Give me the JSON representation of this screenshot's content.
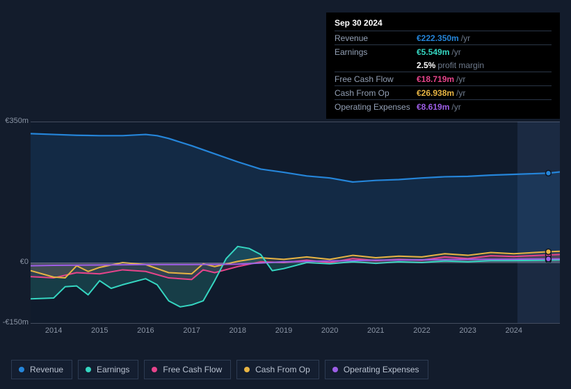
{
  "tooltip": {
    "date": "Sep 30 2024",
    "rows": [
      {
        "label": "Revenue",
        "value": "€222.350m",
        "unit": "/yr",
        "color": "#2585d9"
      },
      {
        "label": "Earnings",
        "value": "€5.549m",
        "unit": "/yr",
        "color": "#35d6c1"
      },
      {
        "label": "",
        "value": "2.5%",
        "unit": "profit margin",
        "color": "#ffffff",
        "noborder": true
      },
      {
        "label": "Free Cash Flow",
        "value": "€18.719m",
        "unit": "/yr",
        "color": "#e6448b"
      },
      {
        "label": "Cash From Op",
        "value": "€26.938m",
        "unit": "/yr",
        "color": "#e7b443"
      },
      {
        "label": "Operating Expenses",
        "value": "€8.619m",
        "unit": "/yr",
        "color": "#9d5ee6"
      }
    ]
  },
  "chart": {
    "type": "line-area",
    "ylim": [
      -150,
      350
    ],
    "yticks": [
      {
        "v": 350,
        "label": "€350m"
      },
      {
        "v": 0,
        "label": "€0"
      },
      {
        "v": -150,
        "label": "-€150m"
      }
    ],
    "xlim": [
      2013.5,
      2025.0
    ],
    "xticks": [
      2014,
      2015,
      2016,
      2017,
      2018,
      2019,
      2020,
      2021,
      2022,
      2023,
      2024
    ],
    "background_color": "#101b2c",
    "future_band_color": "#1b2a42",
    "grid_color": "rgba(160,170,190,0.35)",
    "series": {
      "revenue": {
        "label": "Revenue",
        "color": "#2585d9",
        "fill_opacity": 0.15,
        "width": 2.2,
        "data": [
          [
            2013.5,
            320
          ],
          [
            2014,
            318
          ],
          [
            2014.5,
            316
          ],
          [
            2015,
            315
          ],
          [
            2015.5,
            315
          ],
          [
            2016,
            318
          ],
          [
            2016.25,
            315
          ],
          [
            2016.5,
            308
          ],
          [
            2017,
            290
          ],
          [
            2017.5,
            270
          ],
          [
            2018,
            250
          ],
          [
            2018.5,
            232
          ],
          [
            2019,
            224
          ],
          [
            2019.5,
            215
          ],
          [
            2020,
            210
          ],
          [
            2020.5,
            200
          ],
          [
            2021,
            204
          ],
          [
            2021.5,
            206
          ],
          [
            2022,
            210
          ],
          [
            2022.5,
            213
          ],
          [
            2023,
            214
          ],
          [
            2023.5,
            217
          ],
          [
            2024,
            219
          ],
          [
            2024.75,
            222
          ],
          [
            2025,
            225
          ]
        ]
      },
      "earnings": {
        "label": "Earnings",
        "color": "#35d6c1",
        "fill_opacity": 0.18,
        "width": 2.0,
        "data": [
          [
            2013.5,
            -90
          ],
          [
            2014,
            -88
          ],
          [
            2014.25,
            -60
          ],
          [
            2014.5,
            -58
          ],
          [
            2014.75,
            -80
          ],
          [
            2015,
            -45
          ],
          [
            2015.25,
            -64
          ],
          [
            2015.5,
            -55
          ],
          [
            2016,
            -40
          ],
          [
            2016.25,
            -55
          ],
          [
            2016.5,
            -95
          ],
          [
            2016.75,
            -110
          ],
          [
            2017,
            -105
          ],
          [
            2017.25,
            -95
          ],
          [
            2017.5,
            -45
          ],
          [
            2017.75,
            10
          ],
          [
            2018,
            40
          ],
          [
            2018.25,
            35
          ],
          [
            2018.5,
            20
          ],
          [
            2018.75,
            -20
          ],
          [
            2019,
            -15
          ],
          [
            2019.5,
            0
          ],
          [
            2020,
            -3
          ],
          [
            2020.5,
            2
          ],
          [
            2021,
            -2
          ],
          [
            2021.5,
            2
          ],
          [
            2022,
            0
          ],
          [
            2022.5,
            4
          ],
          [
            2023,
            2
          ],
          [
            2023.5,
            5
          ],
          [
            2024,
            5
          ],
          [
            2024.75,
            6
          ],
          [
            2025,
            7
          ]
        ]
      },
      "fcf": {
        "label": "Free Cash Flow",
        "color": "#e6448b",
        "fill_opacity": 0.15,
        "width": 2.0,
        "data": [
          [
            2013.5,
            -35
          ],
          [
            2014,
            -38
          ],
          [
            2014.5,
            -25
          ],
          [
            2015,
            -28
          ],
          [
            2015.5,
            -18
          ],
          [
            2016,
            -22
          ],
          [
            2016.5,
            -38
          ],
          [
            2017,
            -42
          ],
          [
            2017.25,
            -18
          ],
          [
            2017.5,
            -25
          ],
          [
            2018,
            -10
          ],
          [
            2018.5,
            2
          ],
          [
            2019,
            0
          ],
          [
            2019.5,
            6
          ],
          [
            2020,
            0
          ],
          [
            2020.5,
            10
          ],
          [
            2021,
            5
          ],
          [
            2021.5,
            8
          ],
          [
            2022,
            6
          ],
          [
            2022.5,
            14
          ],
          [
            2023,
            10
          ],
          [
            2023.5,
            17
          ],
          [
            2024,
            15
          ],
          [
            2024.75,
            19
          ],
          [
            2025,
            20
          ]
        ]
      },
      "cfo": {
        "label": "Cash From Op",
        "color": "#e7b443",
        "fill_opacity": 0.1,
        "width": 2.0,
        "data": [
          [
            2013.5,
            -20
          ],
          [
            2014,
            -36
          ],
          [
            2014.25,
            -38
          ],
          [
            2014.5,
            -8
          ],
          [
            2014.75,
            -22
          ],
          [
            2015,
            -12
          ],
          [
            2015.5,
            0
          ],
          [
            2016,
            -5
          ],
          [
            2016.5,
            -25
          ],
          [
            2017,
            -28
          ],
          [
            2017.25,
            -3
          ],
          [
            2017.5,
            -10
          ],
          [
            2018,
            3
          ],
          [
            2018.5,
            12
          ],
          [
            2019,
            8
          ],
          [
            2019.5,
            14
          ],
          [
            2020,
            8
          ],
          [
            2020.5,
            18
          ],
          [
            2021,
            12
          ],
          [
            2021.5,
            16
          ],
          [
            2022,
            14
          ],
          [
            2022.5,
            22
          ],
          [
            2023,
            18
          ],
          [
            2023.5,
            25
          ],
          [
            2024,
            22
          ],
          [
            2024.75,
            27
          ],
          [
            2025,
            28
          ]
        ]
      },
      "opex": {
        "label": "Operating Expenses",
        "color": "#9d5ee6",
        "fill_opacity": 0.1,
        "width": 2.0,
        "data": [
          [
            2013.5,
            -8
          ],
          [
            2014,
            -7
          ],
          [
            2015,
            -6
          ],
          [
            2016,
            -5
          ],
          [
            2017,
            -5
          ],
          [
            2018,
            -4
          ],
          [
            2019,
            2
          ],
          [
            2020,
            4
          ],
          [
            2021,
            6
          ],
          [
            2022,
            7
          ],
          [
            2023,
            8
          ],
          [
            2024,
            8.5
          ],
          [
            2024.75,
            9
          ],
          [
            2025,
            9
          ]
        ]
      }
    },
    "marker_x": 2024.75
  },
  "legend": [
    {
      "label": "Revenue",
      "color": "#2585d9"
    },
    {
      "label": "Earnings",
      "color": "#35d6c1"
    },
    {
      "label": "Free Cash Flow",
      "color": "#e6448b"
    },
    {
      "label": "Cash From Op",
      "color": "#e7b443"
    },
    {
      "label": "Operating Expenses",
      "color": "#9d5ee6"
    }
  ]
}
